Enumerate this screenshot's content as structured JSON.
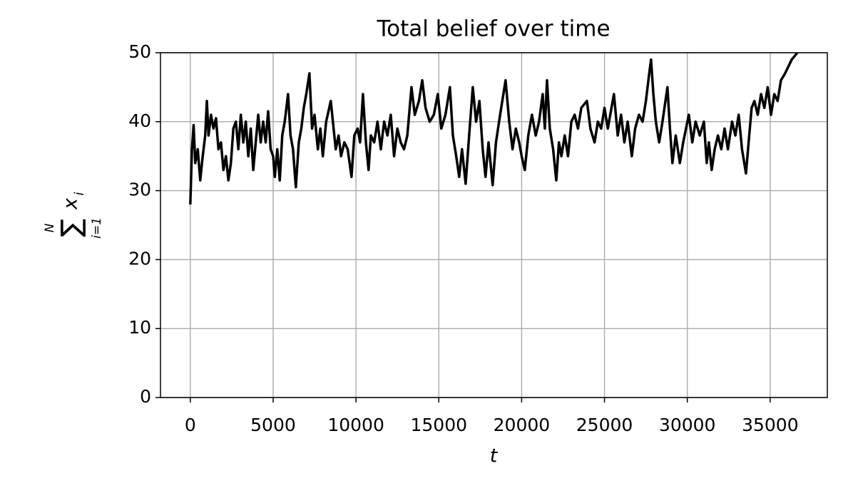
{
  "chart_data": {
    "type": "line",
    "title": "Total belief over time",
    "xlabel": "t",
    "ylabel": {
      "sum": "∑",
      "upper": "N",
      "lower": "i=1",
      "var": "x",
      "sub": "i"
    },
    "x": [
      0,
      100,
      200,
      300,
      450,
      600,
      750,
      900,
      1000,
      1100,
      1250,
      1400,
      1550,
      1700,
      1850,
      2000,
      2150,
      2300,
      2450,
      2600,
      2750,
      2900,
      3050,
      3200,
      3350,
      3500,
      3650,
      3800,
      3950,
      4100,
      4250,
      4400,
      4550,
      4700,
      4850,
      5000,
      5100,
      5250,
      5400,
      5550,
      5700,
      5900,
      6050,
      6200,
      6370,
      6550,
      6700,
      6850,
      7000,
      7190,
      7350,
      7500,
      7700,
      7850,
      8000,
      8200,
      8480,
      8650,
      8780,
      8950,
      9100,
      9300,
      9500,
      9730,
      9900,
      10100,
      10250,
      10420,
      10600,
      10760,
      10900,
      11100,
      11300,
      11500,
      11700,
      11900,
      12100,
      12300,
      12500,
      12700,
      12900,
      13100,
      13350,
      13550,
      13800,
      14000,
      14200,
      14450,
      14700,
      14940,
      15150,
      15400,
      15670,
      15850,
      16050,
      16230,
      16400,
      16620,
      16800,
      17050,
      17250,
      17450,
      17650,
      17820,
      18000,
      18250,
      18450,
      18700,
      19030,
      19250,
      19450,
      19650,
      19850,
      20000,
      20190,
      20400,
      20620,
      20850,
      21050,
      21270,
      21400,
      21530,
      21700,
      21900,
      22090,
      22250,
      22400,
      22600,
      22800,
      23000,
      23200,
      23400,
      23600,
      23940,
      24150,
      24400,
      24600,
      24800,
      25000,
      25200,
      25570,
      25800,
      26000,
      26200,
      26400,
      26650,
      26850,
      27080,
      27300,
      27500,
      27700,
      27810,
      27950,
      28100,
      28300,
      28500,
      28800,
      28950,
      29100,
      29300,
      29550,
      29750,
      30090,
      30300,
      30500,
      30750,
      31000,
      31170,
      31300,
      31470,
      31650,
      31850,
      32050,
      32250,
      32450,
      32700,
      32900,
      33100,
      33300,
      33540,
      33700,
      33880,
      34050,
      34250,
      34450,
      34650,
      34850,
      35050,
      35250,
      35450,
      35650,
      35900,
      36100,
      36300,
      36640
    ],
    "series": [
      {
        "color": "#000000",
        "values": [
          28,
          36,
          39.5,
          34,
          36,
          31.5,
          35,
          38,
          43,
          38,
          41,
          39,
          40.5,
          36,
          37,
          33,
          35,
          31.5,
          34,
          39,
          40,
          36,
          41,
          37,
          40,
          35,
          39,
          33,
          37,
          41,
          37,
          40,
          37,
          41.5,
          36,
          35,
          32,
          36,
          31.5,
          38,
          40,
          44,
          38,
          36,
          30.5,
          37,
          39,
          42,
          44,
          47,
          39,
          41,
          36,
          39,
          35,
          40,
          43,
          39,
          36,
          38,
          35,
          37,
          36,
          32,
          38,
          39,
          37,
          44,
          37,
          33,
          38,
          37,
          40,
          36,
          40,
          38,
          41,
          35,
          39,
          37,
          36,
          38,
          45,
          41,
          43,
          46,
          42,
          40,
          41,
          44,
          39,
          41,
          45,
          38,
          35,
          32,
          36,
          31,
          37,
          45,
          40,
          43,
          36,
          32,
          37,
          30.8,
          37,
          41,
          46,
          40,
          36,
          39,
          37,
          35,
          33,
          38,
          41,
          38,
          40,
          44,
          39,
          46,
          39,
          36,
          31.5,
          37,
          35,
          38,
          35,
          40,
          41,
          39,
          42,
          43,
          39,
          37,
          40,
          39,
          42,
          39,
          44,
          38,
          41,
          37,
          40,
          35,
          39,
          41,
          40,
          43,
          47,
          49,
          44,
          40,
          37,
          40,
          45,
          39,
          34,
          38,
          34,
          37,
          41,
          37,
          40,
          38,
          40,
          34,
          37,
          33,
          36,
          38,
          36,
          39,
          36,
          40,
          38,
          41,
          36,
          32.5,
          37,
          42,
          43,
          41,
          44,
          42,
          45,
          41,
          44,
          43,
          46,
          47,
          48,
          49,
          50
        ]
      }
    ],
    "xlim": [
      -1800,
      38450
    ],
    "ylim": [
      0,
      50
    ],
    "xticks": [
      0,
      5000,
      10000,
      15000,
      20000,
      25000,
      30000,
      35000
    ],
    "yticks": [
      0,
      10,
      20,
      30,
      40,
      50
    ],
    "grid": true
  }
}
